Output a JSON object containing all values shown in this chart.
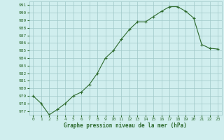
{
  "x": [
    0,
    1,
    2,
    3,
    4,
    5,
    6,
    7,
    8,
    9,
    10,
    11,
    12,
    13,
    14,
    15,
    16,
    17,
    18,
    19,
    20,
    21,
    22,
    23
  ],
  "y": [
    979,
    978,
    976.5,
    977.2,
    978,
    979,
    979.5,
    980.5,
    982,
    984,
    985,
    986.5,
    987.8,
    988.8,
    988.8,
    989.5,
    990.2,
    990.8,
    990.8,
    990.2,
    989.3,
    985.8,
    985.3,
    985.2
  ],
  "line_color": "#2d6a2d",
  "marker_color": "#2d6a2d",
  "bg_color": "#d0eeee",
  "grid_color": "#a0c8c8",
  "xlabel": "Graphe pression niveau de la mer (hPa)",
  "xlabel_color": "#2d6a2d",
  "tick_color": "#2d6a2d",
  "ylim_min": 976.5,
  "ylim_max": 991.5,
  "xlim_min": -0.5,
  "xlim_max": 23.5,
  "yticks": [
    977,
    978,
    979,
    980,
    981,
    982,
    983,
    984,
    985,
    986,
    987,
    988,
    989,
    990,
    991
  ],
  "xticks": [
    0,
    1,
    2,
    3,
    4,
    5,
    6,
    7,
    8,
    9,
    10,
    11,
    12,
    13,
    14,
    15,
    16,
    17,
    18,
    19,
    20,
    21,
    22,
    23
  ],
  "tick_fontsize": 4.5,
  "xlabel_fontsize": 5.5
}
